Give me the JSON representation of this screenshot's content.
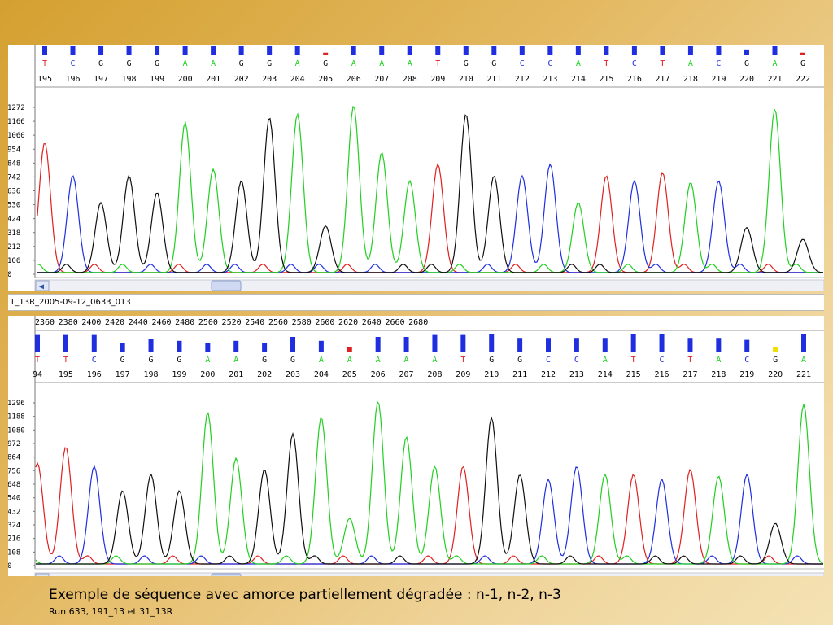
{
  "colors": {
    "A": "#20d020",
    "C": "#1f2fe0",
    "G": "#101010",
    "T": "#e02020",
    "N": "#e02020"
  },
  "panel1": {
    "y_ticks": [
      "1272",
      "1166",
      "1060",
      "954",
      "848",
      "742",
      "636",
      "530",
      "424",
      "318",
      "212",
      "106",
      "0"
    ],
    "calls": [
      {
        "b": "T",
        "n": "195",
        "q": 0.9
      },
      {
        "b": "C",
        "n": "196",
        "q": 0.9
      },
      {
        "b": "G",
        "n": "197",
        "q": 0.9
      },
      {
        "b": "G",
        "n": "198",
        "q": 0.9
      },
      {
        "b": "G",
        "n": "199",
        "q": 0.9
      },
      {
        "b": "A",
        "n": "200",
        "q": 0.9
      },
      {
        "b": "A",
        "n": "201",
        "q": 0.9
      },
      {
        "b": "G",
        "n": "202",
        "q": 0.9
      },
      {
        "b": "G",
        "n": "203",
        "q": 0.9
      },
      {
        "b": "A",
        "n": "204",
        "q": 0.9
      },
      {
        "b": "G",
        "n": "205",
        "q": 0.25,
        "qc": "N"
      },
      {
        "b": "A",
        "n": "206",
        "q": 0.9
      },
      {
        "b": "A",
        "n": "207",
        "q": 0.9
      },
      {
        "b": "A",
        "n": "208",
        "q": 0.9
      },
      {
        "b": "T",
        "n": "209",
        "q": 0.9
      },
      {
        "b": "G",
        "n": "210",
        "q": 0.9
      },
      {
        "b": "G",
        "n": "211",
        "q": 0.9
      },
      {
        "b": "C",
        "n": "212",
        "q": 0.9
      },
      {
        "b": "C",
        "n": "213",
        "q": 0.9
      },
      {
        "b": "A",
        "n": "214",
        "q": 0.9
      },
      {
        "b": "T",
        "n": "215",
        "q": 0.9
      },
      {
        "b": "C",
        "n": "216",
        "q": 0.9
      },
      {
        "b": "T",
        "n": "217",
        "q": 0.9
      },
      {
        "b": "A",
        "n": "218",
        "q": 0.9
      },
      {
        "b": "C",
        "n": "219",
        "q": 0.9
      },
      {
        "b": "G",
        "n": "220",
        "q": 0.55
      },
      {
        "b": "A",
        "n": "221",
        "q": 0.9
      },
      {
        "b": "G",
        "n": "222",
        "q": 0.25,
        "qc": "N"
      }
    ]
  },
  "panel2": {
    "file_name": "1_13R_2005-09-12_0633_013",
    "scan_ticks": [
      "2360",
      "2380",
      "2400",
      "2420",
      "2440",
      "2460",
      "2480",
      "2500",
      "2520",
      "2540",
      "2560",
      "2580",
      "2600",
      "2620",
      "2640",
      "2660",
      "2680"
    ],
    "y_ticks": [
      "1296",
      "1188",
      "1080",
      "972",
      "864",
      "756",
      "648",
      "540",
      "432",
      "324",
      "216",
      "108",
      "0"
    ],
    "calls": [
      {
        "b": "T",
        "n": "94",
        "q": 0.85
      },
      {
        "b": "T",
        "n": "195",
        "q": 0.85
      },
      {
        "b": "C",
        "n": "196",
        "q": 0.85
      },
      {
        "b": "G",
        "n": "197",
        "q": 0.45
      },
      {
        "b": "G",
        "n": "198",
        "q": 0.65
      },
      {
        "b": "G",
        "n": "199",
        "q": 0.55
      },
      {
        "b": "A",
        "n": "200",
        "q": 0.45
      },
      {
        "b": "A",
        "n": "201",
        "q": 0.55
      },
      {
        "b": "G",
        "n": "202",
        "q": 0.45
      },
      {
        "b": "G",
        "n": "203",
        "q": 0.75
      },
      {
        "b": "A",
        "n": "204",
        "q": 0.55
      },
      {
        "b": "A",
        "n": "205",
        "q": 0.22,
        "qc": "N"
      },
      {
        "b": "A",
        "n": "206",
        "q": 0.75
      },
      {
        "b": "A",
        "n": "207",
        "q": 0.75
      },
      {
        "b": "A",
        "n": "208",
        "q": 0.85
      },
      {
        "b": "T",
        "n": "209",
        "q": 0.85
      },
      {
        "b": "G",
        "n": "210",
        "q": 0.9
      },
      {
        "b": "G",
        "n": "211",
        "q": 0.7
      },
      {
        "b": "C",
        "n": "212",
        "q": 0.7
      },
      {
        "b": "C",
        "n": "213",
        "q": 0.7
      },
      {
        "b": "A",
        "n": "214",
        "q": 0.7
      },
      {
        "b": "T",
        "n": "215",
        "q": 0.9
      },
      {
        "b": "C",
        "n": "216",
        "q": 0.9
      },
      {
        "b": "T",
        "n": "217",
        "q": 0.7
      },
      {
        "b": "A",
        "n": "218",
        "q": 0.7
      },
      {
        "b": "C",
        "n": "219",
        "q": 0.6
      },
      {
        "b": "G",
        "n": "220",
        "q": 0.25,
        "qc": "Y"
      },
      {
        "b": "A",
        "n": "221",
        "q": 0.9
      }
    ]
  },
  "caption": {
    "title": "Exemple de séquence avec amorce partiellement dégradée : n-1, n-2, n-3",
    "subtitle": "Run 633, 191_13 et 31_13R"
  }
}
